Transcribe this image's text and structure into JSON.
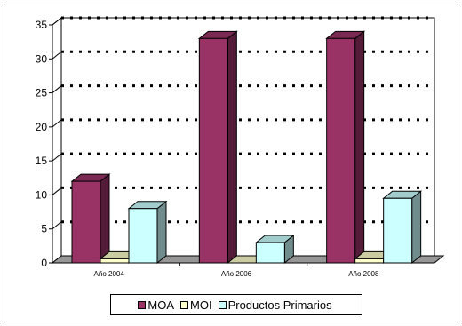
{
  "chart_data": {
    "type": "bar",
    "categories": [
      "Año 2004",
      "Año 2006",
      "Año 2008"
    ],
    "series": [
      {
        "name": "MOA",
        "values": [
          12,
          33,
          33
        ],
        "color": "#993366"
      },
      {
        "name": "MOI",
        "values": [
          0.6,
          0,
          0.6
        ],
        "color": "#ffffcc"
      },
      {
        "name": "Productos Primarios",
        "values": [
          8,
          3,
          9.5
        ],
        "color": "#ccffff"
      }
    ],
    "ylim": [
      0,
      35
    ],
    "yticks": [
      0,
      5,
      10,
      15,
      20,
      25,
      30,
      35
    ],
    "grid": true,
    "legend": "bottom",
    "title": "",
    "xlabel": "",
    "ylabel": ""
  }
}
